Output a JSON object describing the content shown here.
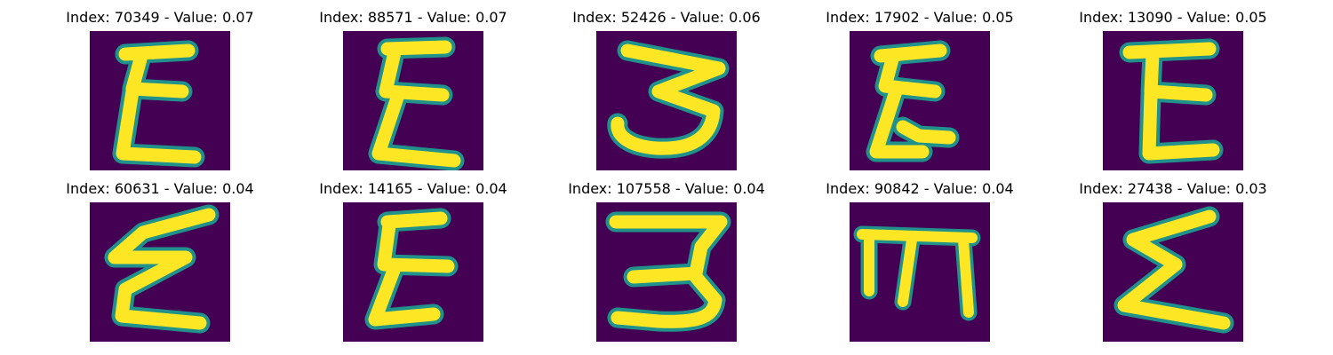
{
  "colors": {
    "background": "#440154",
    "stroke": "#FDE725",
    "stroke_edge": "#21918C"
  },
  "panels": [
    {
      "title": "Index: 70349 - Value: 0.07",
      "glyph": "epsilon"
    },
    {
      "title": "Index: 88571 - Value: 0.07",
      "glyph": "epsilon"
    },
    {
      "title": "Index: 52426 - Value: 0.06",
      "glyph": "three"
    },
    {
      "title": "Index: 17902 - Value: 0.05",
      "glyph": "epsilon"
    },
    {
      "title": "Index: 13090 - Value: 0.05",
      "glyph": "e-block"
    },
    {
      "title": "Index: 60631 - Value: 0.04",
      "glyph": "epsilon"
    },
    {
      "title": "Index: 14165 - Value: 0.04",
      "glyph": "epsilon"
    },
    {
      "title": "Index: 107558 - Value: 0.04",
      "glyph": "three"
    },
    {
      "title": "Index: 90842 - Value: 0.04",
      "glyph": "m"
    },
    {
      "title": "Index: 27438 - Value: 0.03",
      "glyph": "sigma"
    }
  ]
}
